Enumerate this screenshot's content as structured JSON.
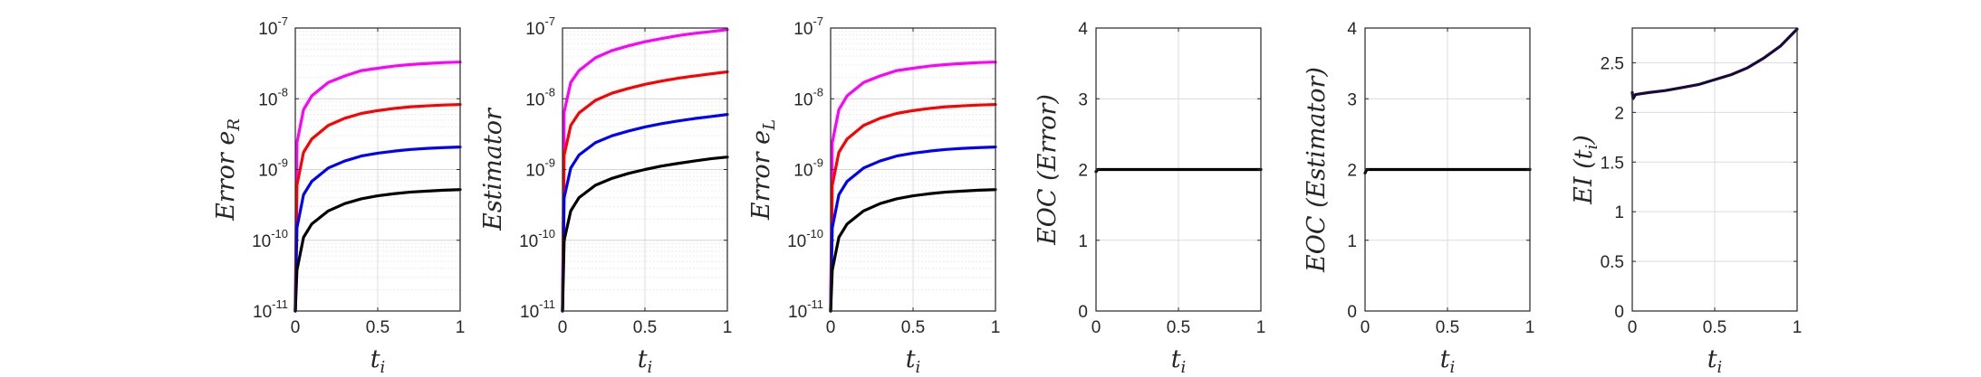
{
  "chart_data": [
    {
      "type": "line",
      "ylabel": {
        "base": "Error e",
        "sub": "R"
      },
      "xlabel": {
        "base": "t",
        "sub": "i"
      },
      "yscale": "log",
      "xlim": [
        0,
        1
      ],
      "ylim": [
        1e-11,
        1e-07
      ],
      "x_ticks": [
        "0",
        "0.5",
        "1"
      ],
      "y_ticks": [
        {
          "base": "10",
          "exp": "-11"
        },
        {
          "base": "10",
          "exp": "-10"
        },
        {
          "base": "10",
          "exp": "-9"
        },
        {
          "base": "10",
          "exp": "-8"
        },
        {
          "base": "10",
          "exp": "-7"
        }
      ],
      "grid": true,
      "series": [
        {
          "color": "#ff00ff",
          "values": [
            [
              0,
              1e-11
            ],
            [
              0.01,
              2.4e-09
            ],
            [
              0.05,
              7e-09
            ],
            [
              0.1,
              1.1e-08
            ],
            [
              0.2,
              1.7e-08
            ],
            [
              0.3,
              2.1e-08
            ],
            [
              0.4,
              2.5e-08
            ],
            [
              0.5,
              2.7e-08
            ],
            [
              0.6,
              2.9e-08
            ],
            [
              0.7,
              3.05e-08
            ],
            [
              0.8,
              3.15e-08
            ],
            [
              0.9,
              3.25e-08
            ],
            [
              1,
              3.3e-08
            ]
          ]
        },
        {
          "color": "#ff0000",
          "values": [
            [
              0,
              1e-11
            ],
            [
              0.01,
              6e-10
            ],
            [
              0.05,
              1.75e-09
            ],
            [
              0.1,
              2.7e-09
            ],
            [
              0.2,
              4.2e-09
            ],
            [
              0.3,
              5.3e-09
            ],
            [
              0.4,
              6.2e-09
            ],
            [
              0.5,
              6.8e-09
            ],
            [
              0.6,
              7.3e-09
            ],
            [
              0.7,
              7.7e-09
            ],
            [
              0.8,
              7.95e-09
            ],
            [
              0.9,
              8.15e-09
            ],
            [
              1,
              8.3e-09
            ]
          ]
        },
        {
          "color": "#0000ff",
          "values": [
            [
              0,
              1e-11
            ],
            [
              0.01,
              1.5e-10
            ],
            [
              0.05,
              4.4e-10
            ],
            [
              0.1,
              6.8e-10
            ],
            [
              0.2,
              1.05e-09
            ],
            [
              0.3,
              1.32e-09
            ],
            [
              0.4,
              1.55e-09
            ],
            [
              0.5,
              1.7e-09
            ],
            [
              0.6,
              1.82e-09
            ],
            [
              0.7,
              1.92e-09
            ],
            [
              0.8,
              1.99e-09
            ],
            [
              0.9,
              2.04e-09
            ],
            [
              1,
              2.08e-09
            ]
          ]
        },
        {
          "color": "#000000",
          "values": [
            [
              0,
              1e-11
            ],
            [
              0.01,
              3.8e-11
            ],
            [
              0.05,
              1.1e-10
            ],
            [
              0.1,
              1.7e-10
            ],
            [
              0.2,
              2.6e-10
            ],
            [
              0.3,
              3.3e-10
            ],
            [
              0.4,
              3.85e-10
            ],
            [
              0.5,
              4.25e-10
            ],
            [
              0.6,
              4.55e-10
            ],
            [
              0.7,
              4.8e-10
            ],
            [
              0.8,
              4.95e-10
            ],
            [
              0.9,
              5.1e-10
            ],
            [
              1,
              5.2e-10
            ]
          ]
        }
      ]
    },
    {
      "type": "line",
      "ylabel": {
        "base": "Estimator",
        "sub": ""
      },
      "xlabel": {
        "base": "t",
        "sub": "i"
      },
      "yscale": "log",
      "xlim": [
        0,
        1
      ],
      "ylim": [
        1e-11,
        1e-07
      ],
      "x_ticks": [
        "0",
        "0.5",
        "1"
      ],
      "y_ticks": [
        {
          "base": "10",
          "exp": "-11"
        },
        {
          "base": "10",
          "exp": "-10"
        },
        {
          "base": "10",
          "exp": "-9"
        },
        {
          "base": "10",
          "exp": "-8"
        },
        {
          "base": "10",
          "exp": "-7"
        }
      ],
      "grid": true,
      "series": [
        {
          "color": "#ff00ff",
          "values": [
            [
              0,
              1e-11
            ],
            [
              0.01,
              6.5e-09
            ],
            [
              0.05,
              1.7e-08
            ],
            [
              0.1,
              2.5e-08
            ],
            [
              0.2,
              3.8e-08
            ],
            [
              0.3,
              4.8e-08
            ],
            [
              0.4,
              5.6e-08
            ],
            [
              0.5,
              6.4e-08
            ],
            [
              0.6,
              7.1e-08
            ],
            [
              0.7,
              7.8e-08
            ],
            [
              0.8,
              8.4e-08
            ],
            [
              0.9,
              8.9e-08
            ],
            [
              1,
              9.5e-08
            ]
          ]
        },
        {
          "color": "#ff0000",
          "values": [
            [
              0,
              1e-11
            ],
            [
              0.01,
              1.6e-09
            ],
            [
              0.05,
              4.2e-09
            ],
            [
              0.1,
              6.3e-09
            ],
            [
              0.2,
              9.5e-09
            ],
            [
              0.3,
              1.2e-08
            ],
            [
              0.4,
              1.4e-08
            ],
            [
              0.5,
              1.6e-08
            ],
            [
              0.6,
              1.78e-08
            ],
            [
              0.7,
              1.95e-08
            ],
            [
              0.8,
              2.1e-08
            ],
            [
              0.9,
              2.25e-08
            ],
            [
              1,
              2.4e-08
            ]
          ]
        },
        {
          "color": "#0000ff",
          "values": [
            [
              0,
              1e-11
            ],
            [
              0.01,
              4e-10
            ],
            [
              0.05,
              1.05e-09
            ],
            [
              0.1,
              1.6e-09
            ],
            [
              0.2,
              2.4e-09
            ],
            [
              0.3,
              3e-09
            ],
            [
              0.4,
              3.5e-09
            ],
            [
              0.5,
              4e-09
            ],
            [
              0.6,
              4.45e-09
            ],
            [
              0.7,
              4.85e-09
            ],
            [
              0.8,
              5.25e-09
            ],
            [
              0.9,
              5.6e-09
            ],
            [
              1,
              6e-09
            ]
          ]
        },
        {
          "color": "#000000",
          "values": [
            [
              0,
              1e-11
            ],
            [
              0.01,
              1e-10
            ],
            [
              0.05,
              2.6e-10
            ],
            [
              0.1,
              4e-10
            ],
            [
              0.2,
              6e-10
            ],
            [
              0.3,
              7.5e-10
            ],
            [
              0.4,
              8.8e-10
            ],
            [
              0.5,
              1e-09
            ],
            [
              0.6,
              1.12e-09
            ],
            [
              0.7,
              1.22e-09
            ],
            [
              0.8,
              1.32e-09
            ],
            [
              0.9,
              1.42e-09
            ],
            [
              1,
              1.5e-09
            ]
          ]
        }
      ]
    },
    {
      "type": "line",
      "ylabel": {
        "base": "Error e",
        "sub": "L"
      },
      "xlabel": {
        "base": "t",
        "sub": "i"
      },
      "yscale": "log",
      "xlim": [
        0,
        1
      ],
      "ylim": [
        1e-11,
        1e-07
      ],
      "x_ticks": [
        "0",
        "0.5",
        "1"
      ],
      "y_ticks": [
        {
          "base": "10",
          "exp": "-11"
        },
        {
          "base": "10",
          "exp": "-10"
        },
        {
          "base": "10",
          "exp": "-9"
        },
        {
          "base": "10",
          "exp": "-8"
        },
        {
          "base": "10",
          "exp": "-7"
        }
      ],
      "grid": true,
      "series": [
        {
          "color": "#ff00ff",
          "values": [
            [
              0,
              1e-11
            ],
            [
              0.01,
              2.4e-09
            ],
            [
              0.05,
              7e-09
            ],
            [
              0.1,
              1.1e-08
            ],
            [
              0.2,
              1.7e-08
            ],
            [
              0.3,
              2.1e-08
            ],
            [
              0.4,
              2.5e-08
            ],
            [
              0.5,
              2.7e-08
            ],
            [
              0.6,
              2.9e-08
            ],
            [
              0.7,
              3.05e-08
            ],
            [
              0.8,
              3.15e-08
            ],
            [
              0.9,
              3.25e-08
            ],
            [
              1,
              3.3e-08
            ]
          ]
        },
        {
          "color": "#ff0000",
          "values": [
            [
              0,
              1e-11
            ],
            [
              0.01,
              6e-10
            ],
            [
              0.05,
              1.75e-09
            ],
            [
              0.1,
              2.7e-09
            ],
            [
              0.2,
              4.2e-09
            ],
            [
              0.3,
              5.3e-09
            ],
            [
              0.4,
              6.2e-09
            ],
            [
              0.5,
              6.8e-09
            ],
            [
              0.6,
              7.3e-09
            ],
            [
              0.7,
              7.7e-09
            ],
            [
              0.8,
              7.95e-09
            ],
            [
              0.9,
              8.15e-09
            ],
            [
              1,
              8.3e-09
            ]
          ]
        },
        {
          "color": "#0000ff",
          "values": [
            [
              0,
              1e-11
            ],
            [
              0.01,
              1.5e-10
            ],
            [
              0.05,
              4.4e-10
            ],
            [
              0.1,
              6.8e-10
            ],
            [
              0.2,
              1.05e-09
            ],
            [
              0.3,
              1.32e-09
            ],
            [
              0.4,
              1.55e-09
            ],
            [
              0.5,
              1.7e-09
            ],
            [
              0.6,
              1.82e-09
            ],
            [
              0.7,
              1.92e-09
            ],
            [
              0.8,
              1.99e-09
            ],
            [
              0.9,
              2.04e-09
            ],
            [
              1,
              2.08e-09
            ]
          ]
        },
        {
          "color": "#000000",
          "values": [
            [
              0,
              1e-11
            ],
            [
              0.01,
              3.8e-11
            ],
            [
              0.05,
              1.1e-10
            ],
            [
              0.1,
              1.7e-10
            ],
            [
              0.2,
              2.6e-10
            ],
            [
              0.3,
              3.3e-10
            ],
            [
              0.4,
              3.85e-10
            ],
            [
              0.5,
              4.25e-10
            ],
            [
              0.6,
              4.55e-10
            ],
            [
              0.7,
              4.8e-10
            ],
            [
              0.8,
              4.95e-10
            ],
            [
              0.9,
              5.1e-10
            ],
            [
              1,
              5.2e-10
            ]
          ]
        }
      ]
    },
    {
      "type": "line",
      "ylabel": {
        "base": "EOC (Error)",
        "sub": ""
      },
      "xlabel": {
        "base": "t",
        "sub": "i"
      },
      "yscale": "linear",
      "xlim": [
        0,
        1
      ],
      "ylim": [
        0,
        4
      ],
      "x_ticks": [
        "0",
        "0.5",
        "1"
      ],
      "y_ticks": [
        "0",
        "1",
        "2",
        "3",
        "4"
      ],
      "grid": true,
      "series": [
        {
          "color": "#000000",
          "values": [
            [
              0,
              1.97
            ],
            [
              0.01,
              2.0
            ],
            [
              1,
              2.0
            ]
          ]
        }
      ]
    },
    {
      "type": "line",
      "ylabel": {
        "base": "EOC (Estimator)",
        "sub": ""
      },
      "xlabel": {
        "base": "t",
        "sub": "i"
      },
      "yscale": "linear",
      "xlim": [
        0,
        1
      ],
      "ylim": [
        0,
        4
      ],
      "x_ticks": [
        "0",
        "0.5",
        "1"
      ],
      "y_ticks": [
        "0",
        "1",
        "2",
        "3",
        "4"
      ],
      "grid": true,
      "series": [
        {
          "color": "#000000",
          "values": [
            [
              0,
              1.95
            ],
            [
              0.01,
              2.0
            ],
            [
              1,
              2.0
            ]
          ]
        }
      ]
    },
    {
      "type": "line",
      "ylabel": {
        "base": "EI (t",
        "sub": "i",
        "tail": ")"
      },
      "xlabel": {
        "base": "t",
        "sub": "i"
      },
      "yscale": "linear",
      "xlim": [
        0,
        1
      ],
      "ylim": [
        0,
        2.85
      ],
      "x_ticks": [
        "0",
        "0.5",
        "1"
      ],
      "y_ticks": [
        "0",
        "0.5",
        "1",
        "1.5",
        "2",
        "2.5"
      ],
      "grid": true,
      "series": [
        {
          "color": "#1a0a3c",
          "values": [
            [
              0,
              2.2
            ],
            [
              0.005,
              2.14
            ],
            [
              0.02,
              2.18
            ],
            [
              0.1,
              2.2
            ],
            [
              0.2,
              2.22
            ],
            [
              0.3,
              2.25
            ],
            [
              0.4,
              2.28
            ],
            [
              0.5,
              2.33
            ],
            [
              0.6,
              2.38
            ],
            [
              0.7,
              2.45
            ],
            [
              0.8,
              2.55
            ],
            [
              0.9,
              2.67
            ],
            [
              1,
              2.84
            ]
          ]
        }
      ]
    }
  ]
}
